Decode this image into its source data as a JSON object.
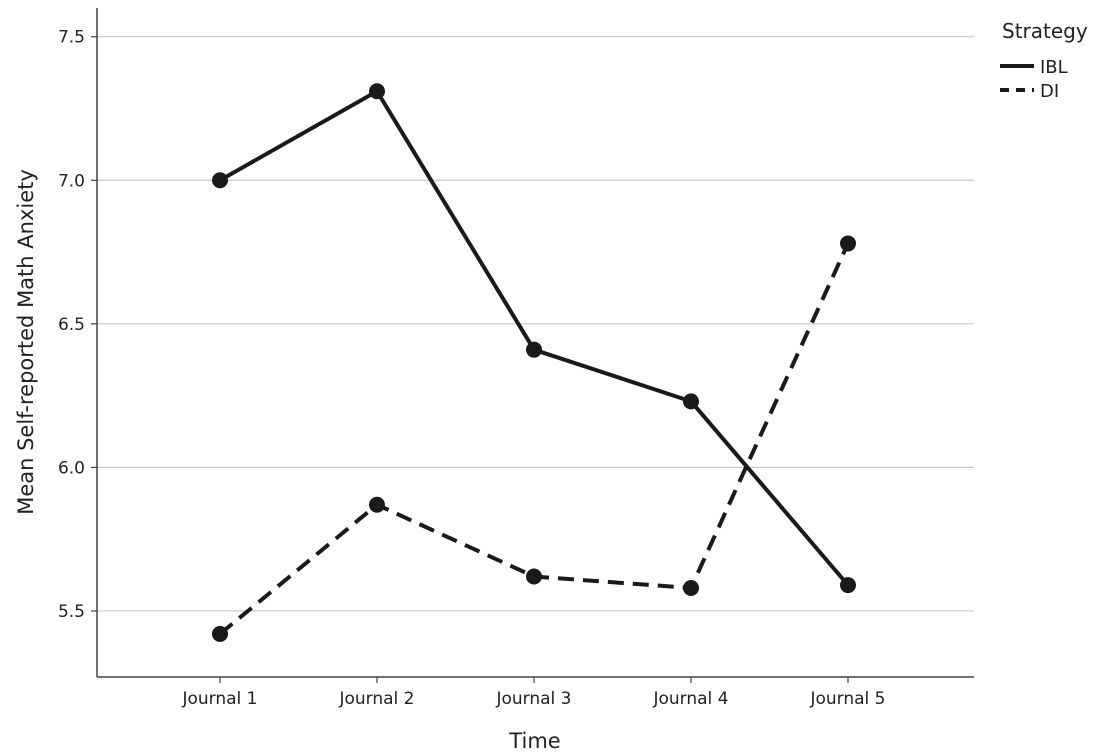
{
  "chart_data": {
    "type": "line",
    "title": "",
    "xlabel": "Time",
    "ylabel": "Mean Self-reported Math Anxiety",
    "categories": [
      "Journal 1",
      "Journal 2",
      "Journal 3",
      "Journal 4",
      "Journal 5"
    ],
    "ylim": [
      5.27,
      7.6
    ],
    "yticks": [
      5.5,
      6.0,
      6.5,
      7.0,
      7.5
    ],
    "ytick_labels": [
      "5.5",
      "6.0",
      "6.5",
      "7.0",
      "7.5"
    ],
    "grid": true,
    "legend": {
      "title": "Strategy",
      "placement": "top-right"
    },
    "series": [
      {
        "name": "IBL",
        "style": "solid",
        "color": "#1a1a1a",
        "values": [
          7.0,
          7.31,
          6.41,
          6.23,
          5.59
        ]
      },
      {
        "name": "DI",
        "style": "dashed",
        "color": "#1a1a1a",
        "values": [
          5.42,
          5.87,
          5.62,
          5.58,
          6.78
        ]
      }
    ]
  }
}
